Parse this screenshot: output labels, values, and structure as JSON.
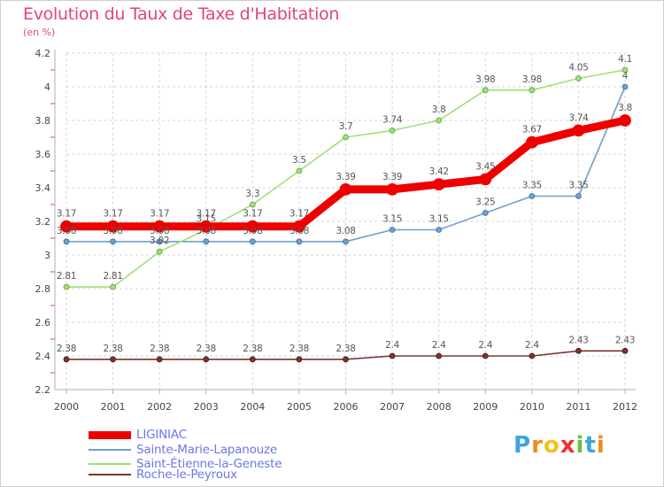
{
  "header": {
    "title": "Evolution du Taux de Taxe d'Habitation",
    "unit": "(en %)"
  },
  "logo": {
    "letters": [
      "P",
      "r",
      "o",
      "x",
      "i",
      "t",
      "i"
    ],
    "colors": [
      "#3aa6e0",
      "#f08a1c",
      "#f3c21f",
      "#e8352d",
      "#6bbf3a",
      "#3aa6e0",
      "#f08a1c"
    ]
  },
  "chart_data": {
    "type": "line",
    "title": "Evolution du Taux de Taxe d'Habitation",
    "ylabel": "(en %)",
    "ylim": [
      2.2,
      4.2
    ],
    "yticks": [
      2.2,
      2.4,
      2.6,
      2.8,
      3,
      3.2,
      3.4,
      3.6,
      3.8,
      4,
      4.2
    ],
    "x": [
      2000,
      2001,
      2002,
      2003,
      2004,
      2005,
      2006,
      2007,
      2008,
      2009,
      2010,
      2011,
      2012
    ],
    "grid": true,
    "legend_position": "bottom-left",
    "series": [
      {
        "name": "LIGINIAC",
        "color": "#ee0000",
        "values": [
          3.17,
          3.17,
          3.17,
          3.17,
          3.17,
          3.17,
          3.39,
          3.39,
          3.42,
          3.45,
          3.67,
          3.74,
          3.8
        ]
      },
      {
        "name": "Sainte-Marie-Lapanouze",
        "color": "#6f9fcf",
        "values": [
          3.08,
          3.08,
          3.08,
          3.08,
          3.08,
          3.08,
          3.08,
          3.15,
          3.15,
          3.25,
          3.35,
          3.35,
          4
        ]
      },
      {
        "name": "Saint-Étienne-la-Geneste",
        "color": "#9fe07a",
        "values": [
          2.81,
          2.81,
          3.02,
          3.15,
          3.3,
          3.5,
          3.7,
          3.74,
          3.8,
          3.98,
          3.98,
          4.05,
          4.1
        ]
      },
      {
        "name": "Roche-le-Peyroux",
        "color": "#7a3535",
        "values": [
          2.38,
          2.38,
          2.38,
          2.38,
          2.38,
          2.38,
          2.38,
          2.4,
          2.4,
          2.4,
          2.4,
          2.43,
          2.43
        ]
      }
    ],
    "labels": [
      [
        "3.17",
        "3.17",
        "3.17",
        "3.17",
        "3.17",
        "3.17",
        "3.39",
        "3.39",
        "3.42",
        "3.45",
        "3.67",
        "3.74",
        "3.8"
      ],
      [
        "3.08",
        "3.08",
        "3.08",
        "3.08",
        "3.08",
        "3.08",
        "3.08",
        "3.15",
        "3.15",
        "3.25",
        "3.35",
        "3.35",
        "4"
      ],
      [
        "2.81",
        "2.81",
        "3.02",
        "3.15",
        "3.3",
        "3.5",
        "3.7",
        "3.74",
        "3.8",
        "3.98",
        "3.98",
        "4.05",
        "4.1"
      ],
      [
        "2.38",
        "2.38",
        "2.38",
        "2.38",
        "2.38",
        "2.38",
        "2.38",
        "2.4",
        "2.4",
        "2.4",
        "2.4",
        "2.43",
        "2.43"
      ]
    ]
  }
}
